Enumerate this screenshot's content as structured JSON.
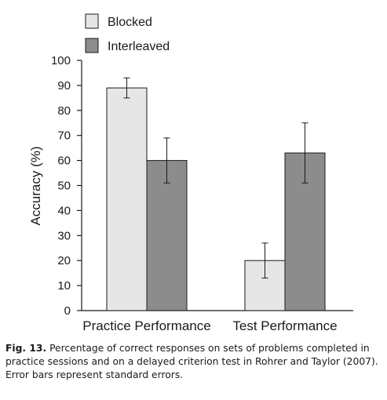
{
  "chart_data": {
    "type": "bar",
    "categories": [
      "Practice Performance",
      "Test Performance"
    ],
    "series": [
      {
        "name": "Blocked",
        "values": [
          89,
          20
        ],
        "error": [
          4,
          7
        ],
        "color": "#e6e6e6"
      },
      {
        "name": "Interleaved",
        "values": [
          60,
          63
        ],
        "error": [
          9,
          12
        ],
        "color": "#8c8c8c"
      }
    ],
    "ylabel": "Accuracy (%)",
    "xlabel": "",
    "ylim": [
      0,
      100
    ],
    "yticks": [
      "0",
      "10",
      "20",
      "30",
      "40",
      "50",
      "60",
      "70",
      "80",
      "90",
      "100"
    ],
    "legend_position": "top-left",
    "grid": false
  },
  "caption": {
    "label": "Fig. 13.",
    "text": "Percentage of correct responses on sets of problems completed in practice sessions and on a delayed criterion test in Rohrer and Taylor (2007). Error bars represent standard errors."
  }
}
